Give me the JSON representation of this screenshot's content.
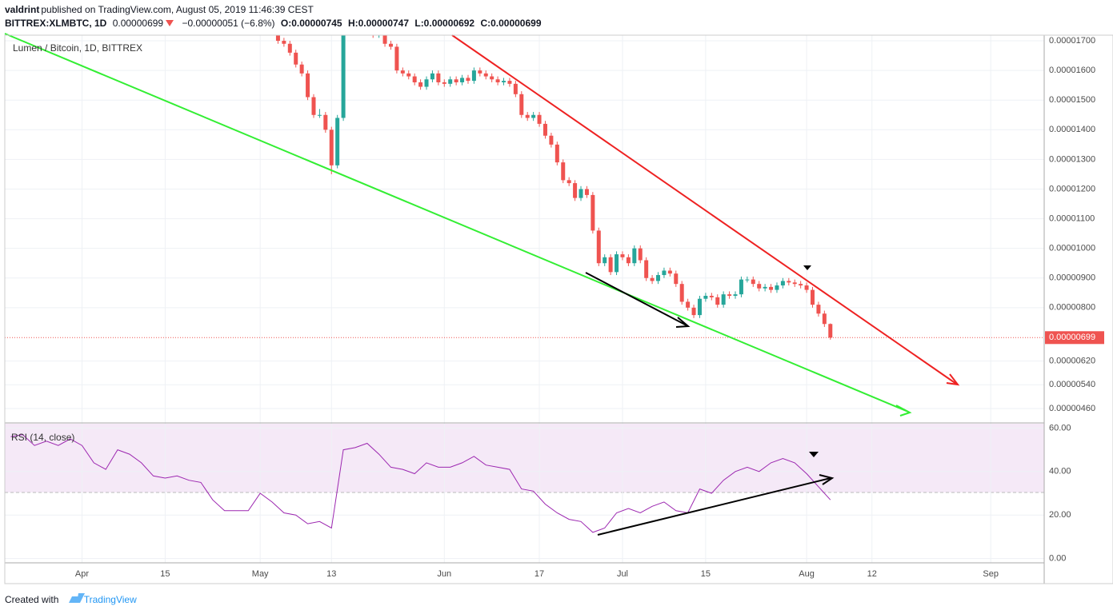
{
  "header": {
    "user": "valdrint",
    "published": "published on TradingView.com, August 05, 2019 11:46:39 CEST",
    "symbol": "BITTREX:XLMBTC, 1D",
    "last": "0.00000699",
    "change": "−0.00000051 (−6.8%)",
    "open": "O:0.00000745",
    "high": "H:0.00000747",
    "low": "L:0.00000692",
    "close": "C:0.00000699"
  },
  "footer": {
    "created": "Created with",
    "brand": "TradingView"
  },
  "chart_data": [
    {
      "type": "candlestick",
      "title": "Lumen / Bitcoin, 1D, BITTREX",
      "x": [
        "2019-05-04",
        "2019-05-05",
        "2019-05-06",
        "2019-05-07",
        "2019-05-08",
        "2019-05-09",
        "2019-05-10",
        "2019-05-11",
        "2019-05-12",
        "2019-05-13",
        "2019-05-14",
        "2019-05-15",
        "2019-05-16",
        "2019-05-17",
        "2019-05-18",
        "2019-05-19",
        "2019-05-20",
        "2019-05-21",
        "2019-05-22",
        "2019-05-23",
        "2019-05-24",
        "2019-05-25",
        "2019-05-26",
        "2019-05-27",
        "2019-05-28",
        "2019-05-29",
        "2019-05-30",
        "2019-05-31",
        "2019-06-01",
        "2019-06-02",
        "2019-06-03",
        "2019-06-04",
        "2019-06-05",
        "2019-06-06",
        "2019-06-07",
        "2019-06-08",
        "2019-06-09",
        "2019-06-10",
        "2019-06-11",
        "2019-06-12",
        "2019-06-13",
        "2019-06-14",
        "2019-06-15",
        "2019-06-16",
        "2019-06-17",
        "2019-06-18",
        "2019-06-19",
        "2019-06-20",
        "2019-06-21",
        "2019-06-22",
        "2019-06-23",
        "2019-06-24",
        "2019-06-25",
        "2019-06-26",
        "2019-06-27",
        "2019-06-28",
        "2019-06-29",
        "2019-06-30",
        "2019-07-01",
        "2019-07-02",
        "2019-07-03",
        "2019-07-04",
        "2019-07-05",
        "2019-07-06",
        "2019-07-07",
        "2019-07-08",
        "2019-07-09",
        "2019-07-10",
        "2019-07-11",
        "2019-07-12",
        "2019-07-13",
        "2019-07-14",
        "2019-07-15",
        "2019-07-16",
        "2019-07-17",
        "2019-07-18",
        "2019-07-19",
        "2019-07-20",
        "2019-07-21",
        "2019-07-22",
        "2019-07-23",
        "2019-07-24",
        "2019-07-25",
        "2019-07-26",
        "2019-07-27",
        "2019-07-28",
        "2019-07-29",
        "2019-07-30",
        "2019-07-31",
        "2019-08-01",
        "2019-08-02",
        "2019-08-03",
        "2019-08-04",
        "2019-08-05"
      ],
      "open": [
        1.72e-05,
        1.7e-05,
        1.69e-05,
        1.66e-05,
        1.62e-05,
        1.59e-05,
        1.51e-05,
        1.45e-05,
        1.45e-05,
        1.4e-05,
        1.28e-05,
        1.44e-05,
        1.74e-05,
        1.8e-05,
        1.78e-05,
        1.76e-05,
        1.74e-05,
        1.72e-05,
        1.73e-05,
        1.69e-05,
        1.68e-05,
        1.6e-05,
        1.59e-05,
        1.58e-05,
        1.56e-05,
        1.545e-05,
        1.57e-05,
        1.59e-05,
        1.56e-05,
        1.555e-05,
        1.57e-05,
        1.56e-05,
        1.575e-05,
        1.565e-05,
        1.6e-05,
        1.59e-05,
        1.58e-05,
        1.57e-05,
        1.56e-05,
        1.565e-05,
        1.555e-05,
        1.52e-05,
        1.45e-05,
        1.44e-05,
        1.45e-05,
        1.42e-05,
        1.38e-05,
        1.35e-05,
        1.29e-05,
        1.23e-05,
        1.22e-05,
        1.17e-05,
        1.2e-05,
        1.18e-05,
        1.06e-05,
        9.5e-06,
        9.7e-06,
        9.2e-06,
        9.8e-06,
        9.7e-06,
        9.5e-06,
        1e-05,
        9.6e-06,
        9e-06,
        8.9e-06,
        9.1e-06,
        9.25e-06,
        9.15e-06,
        8.8e-06,
        8.2e-06,
        8e-06,
        7.75e-06,
        8.3e-06,
        8.4e-06,
        8.35e-06,
        8.1e-06,
        8.45e-06,
        8.4e-06,
        8.45e-06,
        8.95e-06,
        8.95e-06,
        8.8e-06,
        8.65e-06,
        8.7e-06,
        8.6e-06,
        8.75e-06,
        8.9e-06,
        8.85e-06,
        8.8e-06,
        8.75e-06,
        8.6e-06,
        8.1e-06,
        7.8e-06,
        7.45e-06
      ],
      "high": [
        1.73e-05,
        1.71e-05,
        1.7e-05,
        1.67e-05,
        1.63e-05,
        1.6e-05,
        1.52e-05,
        1.47e-05,
        1.46e-05,
        1.41e-05,
        1.45e-05,
        1.75e-05,
        1.81e-05,
        1.81e-05,
        1.79e-05,
        1.77e-05,
        1.75e-05,
        1.74e-05,
        1.74e-05,
        1.7e-05,
        1.69e-05,
        1.61e-05,
        1.6e-05,
        1.59e-05,
        1.57e-05,
        1.58e-05,
        1.6e-05,
        1.6e-05,
        1.57e-05,
        1.58e-05,
        1.58e-05,
        1.585e-05,
        1.585e-05,
        1.61e-05,
        1.61e-05,
        1.6e-05,
        1.59e-05,
        1.58e-05,
        1.575e-05,
        1.575e-05,
        1.565e-05,
        1.53e-05,
        1.46e-05,
        1.46e-05,
        1.46e-05,
        1.43e-05,
        1.39e-05,
        1.36e-05,
        1.3e-05,
        1.24e-05,
        1.23e-05,
        1.21e-05,
        1.21e-05,
        1.19e-05,
        1.07e-05,
        9.8e-06,
        9.8e-06,
        9.9e-06,
        9.9e-06,
        9.8e-06,
        1.01e-05,
        1.01e-05,
        9.7e-06,
        9.1e-06,
        9.2e-06,
        9.35e-06,
        9.35e-06,
        9.25e-06,
        8.9e-06,
        8.3e-06,
        8.1e-06,
        8.4e-06,
        8.5e-06,
        8.5e-06,
        8.45e-06,
        8.55e-06,
        8.55e-06,
        8.55e-06,
        9.05e-06,
        9.05e-06,
        9.05e-06,
        8.9e-06,
        8.8e-06,
        8.8e-06,
        8.85e-06,
        9e-06,
        9e-06,
        8.95e-06,
        8.9e-06,
        8.85e-06,
        8.7e-06,
        8.2e-06,
        7.9e-06,
        7.47e-06
      ],
      "low": [
        1.69e-05,
        1.68e-05,
        1.65e-05,
        1.61e-05,
        1.58e-05,
        1.5e-05,
        1.44e-05,
        1.44e-05,
        1.39e-05,
        1.25e-05,
        1.27e-05,
        1.43e-05,
        1.73e-05,
        1.77e-05,
        1.75e-05,
        1.73e-05,
        1.71e-05,
        1.71e-05,
        1.68e-05,
        1.67e-05,
        1.59e-05,
        1.58e-05,
        1.57e-05,
        1.55e-05,
        1.535e-05,
        1.535e-05,
        1.56e-05,
        1.55e-05,
        1.545e-05,
        1.545e-05,
        1.55e-05,
        1.55e-05,
        1.555e-05,
        1.555e-05,
        1.58e-05,
        1.57e-05,
        1.56e-05,
        1.55e-05,
        1.55e-05,
        1.545e-05,
        1.51e-05,
        1.44e-05,
        1.43e-05,
        1.43e-05,
        1.41e-05,
        1.37e-05,
        1.34e-05,
        1.28e-05,
        1.22e-05,
        1.21e-05,
        1.16e-05,
        1.16e-05,
        1.17e-05,
        1.05e-05,
        9.4e-06,
        9.4e-06,
        9.1e-06,
        9.1e-06,
        9.6e-06,
        9.4e-06,
        9.4e-06,
        9.5e-06,
        8.9e-06,
        8.8e-06,
        8.8e-06,
        9e-06,
        9.05e-06,
        8.7e-06,
        8.1e-06,
        7.9e-06,
        7.65e-06,
        7.65e-06,
        8.2e-06,
        8.25e-06,
        8e-06,
        8e-06,
        8.3e-06,
        8.3e-06,
        8.35e-06,
        8.85e-06,
        8.7e-06,
        8.55e-06,
        8.55e-06,
        8.5e-06,
        8.5e-06,
        8.65e-06,
        8.75e-06,
        8.7e-06,
        8.65e-06,
        8.5e-06,
        8e-06,
        7.7e-06,
        7.35e-06,
        6.92e-06
      ],
      "close": [
        1.7e-05,
        1.69e-05,
        1.66e-05,
        1.62e-05,
        1.59e-05,
        1.51e-05,
        1.45e-05,
        1.45e-05,
        1.4e-05,
        1.28e-05,
        1.44e-05,
        1.74e-05,
        1.8e-05,
        1.78e-05,
        1.76e-05,
        1.74e-05,
        1.72e-05,
        1.73e-05,
        1.69e-05,
        1.68e-05,
        1.6e-05,
        1.59e-05,
        1.58e-05,
        1.56e-05,
        1.545e-05,
        1.57e-05,
        1.59e-05,
        1.56e-05,
        1.555e-05,
        1.57e-05,
        1.56e-05,
        1.575e-05,
        1.565e-05,
        1.6e-05,
        1.59e-05,
        1.58e-05,
        1.57e-05,
        1.56e-05,
        1.565e-05,
        1.555e-05,
        1.52e-05,
        1.45e-05,
        1.44e-05,
        1.45e-05,
        1.42e-05,
        1.38e-05,
        1.35e-05,
        1.29e-05,
        1.23e-05,
        1.22e-05,
        1.17e-05,
        1.2e-05,
        1.18e-05,
        1.06e-05,
        9.5e-06,
        9.7e-06,
        9.2e-06,
        9.8e-06,
        9.7e-06,
        9.5e-06,
        1e-05,
        9.6e-06,
        9e-06,
        8.9e-06,
        9.1e-06,
        9.25e-06,
        9.15e-06,
        8.8e-06,
        8.2e-06,
        8e-06,
        7.75e-06,
        8.3e-06,
        8.4e-06,
        8.35e-06,
        8.1e-06,
        8.45e-06,
        8.4e-06,
        8.45e-06,
        8.95e-06,
        8.95e-06,
        8.8e-06,
        8.65e-06,
        8.7e-06,
        8.6e-06,
        8.75e-06,
        8.9e-06,
        8.85e-06,
        8.8e-06,
        8.75e-06,
        8.6e-06,
        8.1e-06,
        7.8e-06,
        7.45e-06,
        6.99e-06
      ],
      "up_color": "#26a69a",
      "down_color": "#ef5350",
      "xlim": [
        "2019-03-19",
        "2019-09-10"
      ],
      "xticks": [
        {
          "value": "2019-04-01",
          "label": "Apr"
        },
        {
          "value": "2019-04-15",
          "label": "15"
        },
        {
          "value": "2019-05-01",
          "label": "May"
        },
        {
          "value": "2019-05-13",
          "label": "13"
        },
        {
          "value": "2019-06-01",
          "label": "Jun"
        },
        {
          "value": "2019-06-17",
          "label": "17"
        },
        {
          "value": "2019-07-01",
          "label": "Jul"
        },
        {
          "value": "2019-07-15",
          "label": "15"
        },
        {
          "value": "2019-08-01",
          "label": "Aug"
        },
        {
          "value": "2019-08-12",
          "label": "12"
        },
        {
          "value": "2019-09-01",
          "label": "Sep"
        }
      ],
      "ylim": [
        4.14e-06,
        1.719e-05
      ],
      "yticks": [
        {
          "value": 1.7e-05,
          "label": "0.00001700"
        },
        {
          "value": 1.6e-05,
          "label": "0.00001600"
        },
        {
          "value": 1.5e-05,
          "label": "0.00001500"
        },
        {
          "value": 1.4e-05,
          "label": "0.00001400"
        },
        {
          "value": 1.3e-05,
          "label": "0.00001300"
        },
        {
          "value": 1.2e-05,
          "label": "0.00001200"
        },
        {
          "value": 1.1e-05,
          "label": "0.00001100"
        },
        {
          "value": 1e-05,
          "label": "0.00001000"
        },
        {
          "value": 9e-06,
          "label": "0.00000900"
        },
        {
          "value": 8e-06,
          "label": "0.00000800"
        },
        {
          "value": 6.2e-06,
          "label": "0.00000620"
        },
        {
          "value": 5.4e-06,
          "label": "0.00000540"
        },
        {
          "value": 4.6e-06,
          "label": "0.00000460"
        }
      ],
      "grid": true,
      "price_line": {
        "value": 6.99e-06,
        "label": "0.00000699",
        "color": "#ef5350"
      }
    },
    {
      "type": "line",
      "title": "RSI (14, close)",
      "x": [
        "2019-03-20",
        "2019-03-22",
        "2019-03-24",
        "2019-03-26",
        "2019-03-28",
        "2019-03-30",
        "2019-04-01",
        "2019-04-03",
        "2019-04-05",
        "2019-04-07",
        "2019-04-09",
        "2019-04-11",
        "2019-04-13",
        "2019-04-15",
        "2019-04-17",
        "2019-04-19",
        "2019-04-21",
        "2019-04-23",
        "2019-04-25",
        "2019-04-27",
        "2019-04-29",
        "2019-05-01",
        "2019-05-03",
        "2019-05-05",
        "2019-05-07",
        "2019-05-09",
        "2019-05-11",
        "2019-05-13",
        "2019-05-15",
        "2019-05-17",
        "2019-05-19",
        "2019-05-21",
        "2019-05-23",
        "2019-05-25",
        "2019-05-27",
        "2019-05-29",
        "2019-05-31",
        "2019-06-02",
        "2019-06-04",
        "2019-06-06",
        "2019-06-08",
        "2019-06-10",
        "2019-06-12",
        "2019-06-14",
        "2019-06-16",
        "2019-06-18",
        "2019-06-20",
        "2019-06-22",
        "2019-06-24",
        "2019-06-26",
        "2019-06-28",
        "2019-06-30",
        "2019-07-02",
        "2019-07-04",
        "2019-07-06",
        "2019-07-08",
        "2019-07-10",
        "2019-07-12",
        "2019-07-14",
        "2019-07-16",
        "2019-07-18",
        "2019-07-20",
        "2019-07-22",
        "2019-07-24",
        "2019-07-26",
        "2019-07-28",
        "2019-07-30",
        "2019-08-01",
        "2019-08-03",
        "2019-08-05"
      ],
      "values": [
        56,
        57,
        52,
        54,
        52,
        55,
        52,
        44,
        41,
        50,
        48,
        44,
        38,
        37,
        38,
        36,
        35,
        27,
        22,
        22,
        22,
        30,
        26,
        21,
        20,
        16,
        17,
        14,
        50,
        51,
        53,
        48,
        42,
        41,
        39,
        44,
        42,
        42,
        44,
        47,
        43,
        42,
        41,
        32,
        31,
        25,
        21,
        18,
        17,
        12,
        14,
        21,
        23,
        21,
        24,
        26,
        22,
        21,
        32,
        30,
        36,
        40,
        42,
        40,
        44,
        46,
        44,
        39,
        33,
        27
      ],
      "color": "#9c27b0",
      "xlim": [
        "2019-03-19",
        "2019-09-10"
      ],
      "ylim": [
        -2,
        62
      ],
      "yticks": [
        {
          "value": 60,
          "label": "60.00"
        },
        {
          "value": 40,
          "label": "40.00"
        },
        {
          "value": 20,
          "label": "20.00"
        },
        {
          "value": 0,
          "label": "0.00"
        }
      ],
      "grid": true
    }
  ]
}
